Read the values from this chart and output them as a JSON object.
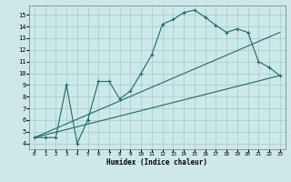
{
  "xlabel": "Humidex (Indice chaleur)",
  "ylabel": "",
  "xlim": [
    -0.5,
    23.5
  ],
  "ylim": [
    3.5,
    15.8
  ],
  "bg_color": "#cce8e8",
  "grid_color": "#aacece",
  "line_color": "#1a6b6b",
  "xticks": [
    0,
    1,
    2,
    3,
    4,
    5,
    6,
    7,
    8,
    9,
    10,
    11,
    12,
    13,
    14,
    15,
    16,
    17,
    18,
    19,
    20,
    21,
    22,
    23
  ],
  "yticks": [
    4,
    5,
    6,
    7,
    8,
    9,
    10,
    11,
    12,
    13,
    14,
    15
  ],
  "curve1_x": [
    0,
    1,
    2,
    3,
    4,
    5,
    6,
    7,
    8,
    9,
    10,
    11,
    12,
    13,
    14,
    15,
    16,
    17,
    18,
    19,
    20,
    21,
    22,
    23
  ],
  "curve1_y": [
    4.5,
    4.5,
    4.5,
    9.0,
    4.0,
    6.0,
    9.3,
    9.3,
    7.8,
    8.5,
    10.0,
    11.6,
    14.2,
    14.6,
    15.2,
    15.4,
    14.8,
    14.1,
    13.5,
    13.8,
    13.5,
    11.0,
    10.5,
    9.8
  ],
  "line2_x": [
    0,
    23
  ],
  "line2_y": [
    4.5,
    9.8
  ],
  "line3_x": [
    0,
    23
  ],
  "line3_y": [
    4.5,
    13.5
  ]
}
